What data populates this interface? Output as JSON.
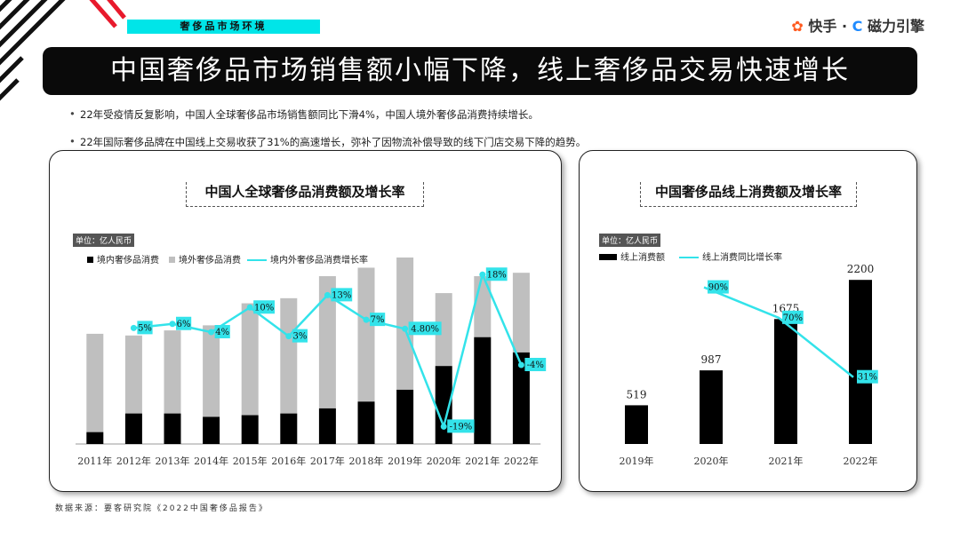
{
  "header": {
    "section_tag": "奢侈品市场环境",
    "brand_kuaishou": "快手",
    "brand_dot": "·",
    "brand_cili": "磁力引擎",
    "title": "中国奢侈品市场销售额小幅下降，线上奢侈品交易快速增长"
  },
  "bullets": [
    "22年受疫情反复影响，中国人全球奢侈品市场销售额同比下滑4%，中国人境外奢侈品消费持续增长。",
    "22年国际奢侈品牌在中国线上交易收获了31%的高速增长，弥补了因物流补偿导致的线下门店交易下降的趋势。"
  ],
  "source": "数据来源：要客研究院《2022中国奢侈品报告》",
  "colors": {
    "accent": "#00e5e8",
    "black": "#000000",
    "gray": "#bfbfbf",
    "line": "#33e3ea"
  },
  "chart_data": [
    {
      "type": "bar",
      "title": "中国人全球奢侈品消费额及增长率",
      "unit": "单位：亿人民币",
      "stacked": true,
      "categories": [
        "2011年",
        "2012年",
        "2013年",
        "2014年",
        "2015年",
        "2016年",
        "2017年",
        "2018年",
        "2019年",
        "2020年",
        "2021年",
        "2022年"
      ],
      "series": [
        {
          "name": "境内奢侈品消费",
          "type": "bar",
          "color": "#000000",
          "values": [
            7,
            18,
            18,
            16,
            17,
            18,
            21,
            25,
            32,
            46,
            63,
            54
          ]
        },
        {
          "name": "境外奢侈品消费",
          "type": "bar",
          "color": "#bfbfbf",
          "values": [
            58,
            46,
            49,
            54,
            66,
            68,
            78,
            79,
            78,
            43,
            36,
            47
          ]
        },
        {
          "name": "境内外奢侈品消费增长率",
          "type": "line",
          "color": "#33e3ea",
          "values": [
            null,
            5,
            6,
            4,
            10,
            3,
            13,
            7,
            4.8,
            -19,
            18,
            -4
          ],
          "labels": [
            "",
            "5%",
            "6%",
            "4%",
            "10%",
            "3%",
            "13%",
            "7%",
            "4.80%",
            "-19%",
            "18%",
            "-4%"
          ]
        }
      ],
      "ylim": [
        0,
        110
      ],
      "grid": false,
      "legend": "top-left"
    },
    {
      "type": "bar",
      "title": "中国奢侈品线上消费额及增长率",
      "unit": "单位：亿人民币",
      "categories": [
        "2019年",
        "2020年",
        "2021年",
        "2022年"
      ],
      "series": [
        {
          "name": "线上消费额",
          "type": "bar",
          "color": "#000000",
          "values": [
            519,
            987,
            1675,
            2200
          ],
          "labels": [
            "519",
            "987",
            "1675",
            "2200"
          ]
        },
        {
          "name": "线上消费同比增长率",
          "type": "line",
          "color": "#33e3ea",
          "values": [
            null,
            90,
            70,
            31
          ],
          "labels": [
            "",
            "90%",
            "70%",
            "31%"
          ]
        }
      ],
      "ylim": [
        0,
        2500
      ],
      "grid": false,
      "legend": "top-left"
    }
  ]
}
